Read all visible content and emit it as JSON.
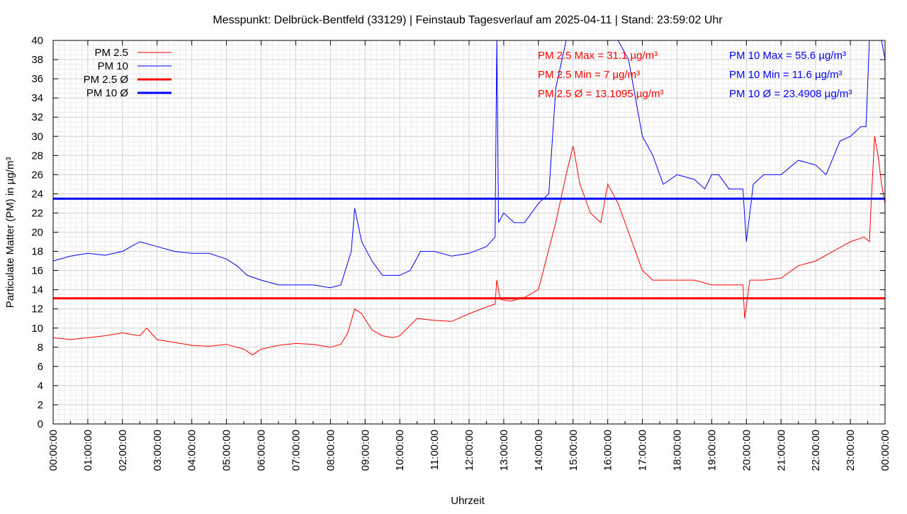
{
  "chart_data": {
    "type": "line",
    "title": "Messpunkt: Delbrück-Bentfeld (33129) | Feinstaub Tagesverlauf am 2025-04-11 | Stand: 23:59:02 Uhr",
    "xlabel": "Uhrzeit",
    "ylabel": "Particulate Matter (PM) in µg/m³",
    "ylim": [
      0,
      40
    ],
    "yticks": [
      "0",
      "2",
      "4",
      "6",
      "8",
      "10",
      "12",
      "14",
      "16",
      "18",
      "20",
      "22",
      "24",
      "26",
      "28",
      "30",
      "32",
      "34",
      "36",
      "38",
      "40"
    ],
    "xlim": [
      "00:00:00",
      "24:00:00"
    ],
    "xticks": [
      "00:00:00",
      "01:00:00",
      "02:00:00",
      "03:00:00",
      "04:00:00",
      "05:00:00",
      "06:00:00",
      "07:00:00",
      "08:00:00",
      "09:00:00",
      "10:00:00",
      "11:00:00",
      "12:00:00",
      "13:00:00",
      "14:00:00",
      "15:00:00",
      "16:00:00",
      "17:00:00",
      "18:00:00",
      "19:00:00",
      "20:00:00",
      "21:00:00",
      "22:00:00",
      "23:00:00",
      "00:00:00"
    ],
    "grid": true,
    "legend_position": "top-left",
    "colors": {
      "pm25": "#ff0000",
      "pm10": "#0000ff"
    },
    "series": [
      {
        "name": "PM 2.5",
        "color": "#ff0000",
        "x_hours": [
          0,
          0.5,
          1,
          1.5,
          2,
          2.5,
          2.7,
          3,
          3.5,
          4,
          4.5,
          5,
          5.5,
          5.75,
          6,
          6.5,
          7,
          7.5,
          8,
          8.3,
          8.5,
          8.7,
          8.9,
          9.2,
          9.5,
          9.8,
          10,
          10.5,
          11,
          11.5,
          12,
          12.5,
          12.75,
          12.8,
          12.9,
          13.2,
          13.6,
          14,
          14.5,
          14.8,
          15,
          15.2,
          15.5,
          15.8,
          16,
          16.3,
          16.6,
          16.8,
          17,
          17.3,
          17.6,
          18,
          18.5,
          19,
          19.5,
          19.9,
          19.95,
          20.1,
          20.5,
          21,
          21.5,
          22,
          22.5,
          23,
          23.4,
          23.55,
          23.6,
          23.7,
          23.8,
          23.9,
          24
        ],
        "values": [
          9,
          8.8,
          9,
          9.2,
          9.5,
          9.2,
          10,
          8.8,
          8.5,
          8.2,
          8.1,
          8.3,
          7.8,
          7.2,
          7.8,
          8.2,
          8.4,
          8.3,
          8,
          8.3,
          9.5,
          12,
          11.5,
          9.8,
          9.2,
          9,
          9.2,
          11,
          10.8,
          10.7,
          11.5,
          12.2,
          12.5,
          15,
          13,
          12.8,
          13.2,
          14,
          21,
          26,
          29,
          25,
          22,
          21,
          25,
          23,
          20,
          18,
          16,
          15,
          15,
          15,
          15,
          14.5,
          14.5,
          14.5,
          11,
          15,
          15,
          15.2,
          16.5,
          17,
          18,
          19,
          19.5,
          19,
          23,
          30,
          28,
          25,
          23
        ]
      },
      {
        "name": "PM 10",
        "color": "#0000ff",
        "x_hours": [
          0,
          0.5,
          1,
          1.5,
          2,
          2.5,
          3,
          3.5,
          4,
          4.5,
          5,
          5.3,
          5.6,
          6,
          6.5,
          7,
          7.5,
          8,
          8.3,
          8.6,
          8.7,
          8.9,
          9.2,
          9.5,
          9.8,
          10,
          10.3,
          10.6,
          11,
          11.5,
          12,
          12.5,
          12.75,
          12.8,
          12.85,
          13,
          13.3,
          13.6,
          14,
          14.3,
          14.5,
          14.8,
          15,
          15.5,
          16,
          16.3,
          16.6,
          16.8,
          17,
          17.3,
          17.6,
          18,
          18.5,
          18.8,
          19,
          19.2,
          19.5,
          19.9,
          20,
          20.2,
          20.5,
          21,
          21.5,
          22,
          22.3,
          22.7,
          23,
          23.3,
          23.45,
          23.55,
          23.7,
          23.9,
          24
        ],
        "values": [
          17,
          17.5,
          17.8,
          17.6,
          18,
          19,
          18.5,
          18,
          17.8,
          17.8,
          17.2,
          16.5,
          15.5,
          15,
          14.5,
          14.5,
          14.5,
          14.2,
          14.5,
          18,
          22.5,
          19,
          17,
          15.5,
          15.5,
          15.5,
          16,
          18,
          18,
          17.5,
          17.8,
          18.5,
          19.5,
          40,
          21,
          22,
          21,
          21,
          23,
          24,
          35,
          40,
          40,
          40,
          40,
          40,
          38,
          34,
          30,
          28,
          25,
          26,
          25.5,
          24.5,
          26,
          26,
          24.5,
          24.5,
          19,
          25,
          26,
          26,
          27.5,
          27,
          26,
          29.5,
          30,
          31,
          31,
          40,
          40,
          40,
          38
        ]
      },
      {
        "name": "PM 2.5 Ø",
        "color": "#ff0000",
        "value": 13.1095
      },
      {
        "name": "PM 10 Ø",
        "color": "#0000ff",
        "value": 23.4908
      }
    ],
    "stats": [
      {
        "text": "PM 2.5 Max = 31.1 µg/m³",
        "color": "#ff0000"
      },
      {
        "text": "PM 2.5 Min = 7 µg/m³",
        "color": "#ff0000"
      },
      {
        "text": "PM 2.5 Ø = 13.1095 µg/m³",
        "color": "#ff0000"
      },
      {
        "text": "PM 10 Max = 55.6 µg/m³",
        "color": "#0000ff"
      },
      {
        "text": "PM 10 Min = 11.6 µg/m³",
        "color": "#0000ff"
      },
      {
        "text": "PM 10 Ø = 23.4908 µg/m³",
        "color": "#0000ff"
      }
    ]
  }
}
